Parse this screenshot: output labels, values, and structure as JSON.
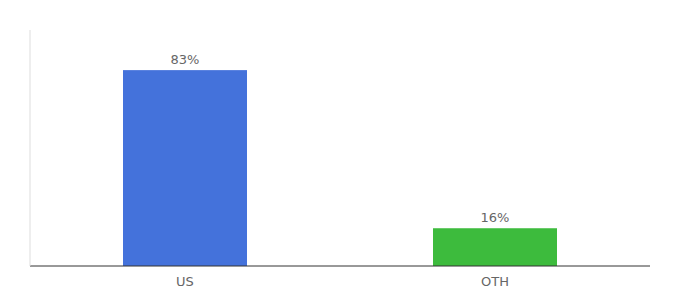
{
  "chart_data": {
    "type": "bar",
    "categories": [
      "US",
      "OTH"
    ],
    "values": [
      83,
      16
    ],
    "value_labels": [
      "83%",
      "16%"
    ],
    "colors": [
      "#4472db",
      "#3dbb3d"
    ],
    "ylim": [
      0,
      100
    ],
    "data_labels": true,
    "tick_labels": "x"
  }
}
